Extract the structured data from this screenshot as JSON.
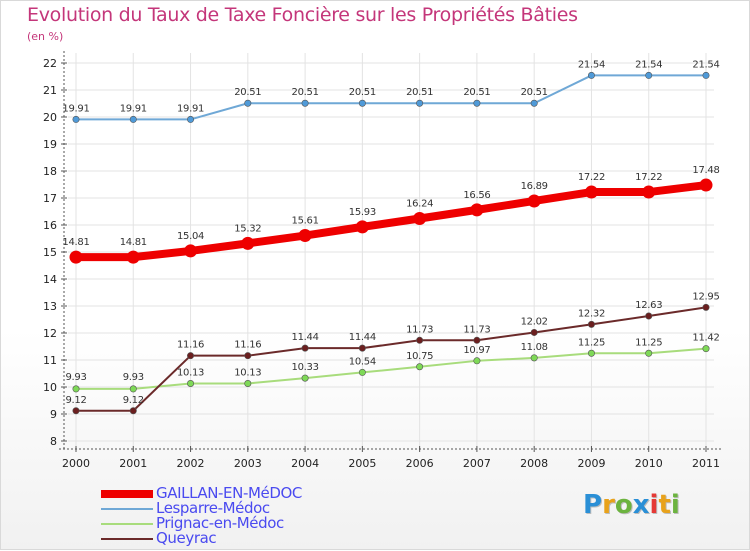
{
  "title": "Evolution du Taux de Taxe Foncière sur les Propriétés Bâties",
  "ylabel": "(en %)",
  "logo": "Proxiti",
  "logo_colors": [
    "#2a8fd6",
    "#e8a21b",
    "#6cb33f",
    "#2a8fd6",
    "#e53935",
    "#e8a21b",
    "#6cb33f"
  ],
  "chart_data": {
    "type": "line",
    "title": "Evolution du Taux de Taxe Foncière sur les Propriétés Bâties",
    "xlabel": "",
    "ylabel": "(en %)",
    "ylim": [
      8,
      22
    ],
    "yticks": [
      "8",
      "9",
      "10",
      "11",
      "12",
      "13",
      "14",
      "15",
      "16",
      "17",
      "18",
      "19",
      "20",
      "21",
      "22"
    ],
    "x": [
      "2000",
      "2001",
      "2002",
      "2003",
      "2004",
      "2005",
      "2006",
      "2007",
      "2008",
      "2009",
      "2010",
      "2011"
    ],
    "grid": true,
    "legend": "bottom-left",
    "series": [
      {
        "name": "GAILLAN-EN-MéDOC",
        "color": "#ee0000",
        "marker_color": "#ee0000",
        "values": [
          14.81,
          14.81,
          15.04,
          15.32,
          15.61,
          15.93,
          16.24,
          16.56,
          16.89,
          17.22,
          17.22,
          17.48
        ],
        "labels": [
          "14.81",
          "14.81",
          "15.04",
          "15.32",
          "15.61",
          "15.93",
          "16.24",
          "16.56",
          "16.89",
          "17.22",
          "17.22",
          "17.48"
        ],
        "highlight": true
      },
      {
        "name": "Lesparre-Médoc",
        "color": "#6fa8d6",
        "marker_color": "#4f9ad8",
        "values": [
          19.91,
          19.91,
          19.91,
          20.51,
          20.51,
          20.51,
          20.51,
          20.51,
          20.51,
          21.54,
          21.54,
          21.54
        ],
        "labels": [
          "19.91",
          "19.91",
          "19.91",
          "20.51",
          "20.51",
          "20.51",
          "20.51",
          "20.51",
          "20.51",
          "21.54",
          "21.54",
          "21.54"
        ]
      },
      {
        "name": "Prignac-en-Médoc",
        "color": "#a8dc7c",
        "marker_color": "#7ed957",
        "values": [
          9.93,
          9.93,
          10.13,
          10.13,
          10.33,
          10.54,
          10.75,
          10.97,
          11.08,
          11.25,
          11.25,
          11.42
        ],
        "labels": [
          "9.93",
          "9.93",
          "10.13",
          "10.13",
          "10.33",
          "10.54",
          "10.75",
          "10.97",
          "11.08",
          "11.25",
          "11.25",
          "11.42"
        ]
      },
      {
        "name": "Queyrac",
        "color": "#6b2a2a",
        "marker_color": "#6b1f1f",
        "values": [
          9.12,
          9.12,
          11.16,
          11.16,
          11.44,
          11.44,
          11.73,
          11.73,
          12.02,
          12.32,
          12.63,
          12.95
        ],
        "labels": [
          "9.12",
          "9.12",
          "11.16",
          "11.16",
          "11.44",
          "11.44",
          "11.73",
          "11.73",
          "12.02",
          "12.32",
          "12.63",
          "12.95"
        ]
      }
    ]
  }
}
